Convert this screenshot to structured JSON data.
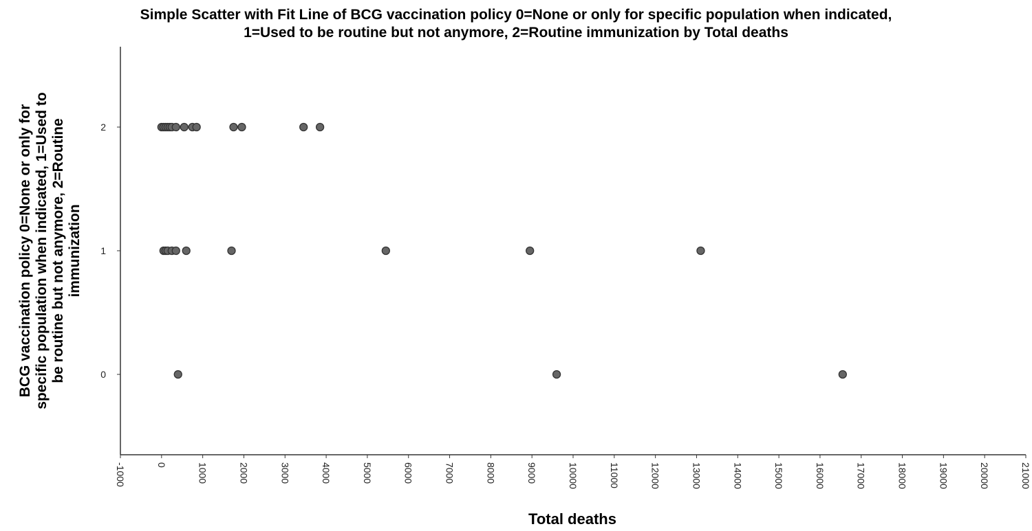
{
  "chart_data": {
    "type": "scatter",
    "title_lines": [
      "Simple Scatter with Fit Line of BCG vaccination policy 0=None or only for specific population when indicated,",
      "1=Used to be routine but not anymore, 2=Routine immunization by Total deaths"
    ],
    "xlabel": "Total deaths",
    "ylabel_lines": [
      "BCG vaccination policy 0=None or only for",
      "specific population when indicated, 1=Used to",
      "be routine but not anymore, 2=Routine",
      "immunization"
    ],
    "xlim": [
      -1000,
      21000
    ],
    "ylim": [
      -0.65,
      2.65
    ],
    "x_ticks": [
      "-1000",
      "0",
      "1000",
      "2000",
      "3000",
      "4000",
      "5000",
      "6000",
      "7000",
      "8000",
      "9000",
      "10000",
      "11000",
      "12000",
      "13000",
      "14000",
      "15000",
      "16000",
      "17000",
      "18000",
      "19000",
      "20000",
      "21000"
    ],
    "y_ticks": [
      "0",
      "1",
      "2"
    ],
    "marker_color": "#666666",
    "marker_edge_color": "#333333",
    "points": [
      {
        "x": 0,
        "y": 2
      },
      {
        "x": 50,
        "y": 2
      },
      {
        "x": 100,
        "y": 2
      },
      {
        "x": 150,
        "y": 2
      },
      {
        "x": 200,
        "y": 2
      },
      {
        "x": 250,
        "y": 2
      },
      {
        "x": 350,
        "y": 2
      },
      {
        "x": 550,
        "y": 2
      },
      {
        "x": 750,
        "y": 2
      },
      {
        "x": 850,
        "y": 2
      },
      {
        "x": 1750,
        "y": 2
      },
      {
        "x": 1950,
        "y": 2
      },
      {
        "x": 3450,
        "y": 2
      },
      {
        "x": 3850,
        "y": 2
      },
      {
        "x": 50,
        "y": 1
      },
      {
        "x": 100,
        "y": 1
      },
      {
        "x": 150,
        "y": 1
      },
      {
        "x": 250,
        "y": 1
      },
      {
        "x": 350,
        "y": 1
      },
      {
        "x": 600,
        "y": 1
      },
      {
        "x": 1700,
        "y": 1
      },
      {
        "x": 5450,
        "y": 1
      },
      {
        "x": 8950,
        "y": 1
      },
      {
        "x": 13100,
        "y": 1
      },
      {
        "x": 400,
        "y": 0
      },
      {
        "x": 9600,
        "y": 0
      },
      {
        "x": 16550,
        "y": 0
      }
    ]
  }
}
